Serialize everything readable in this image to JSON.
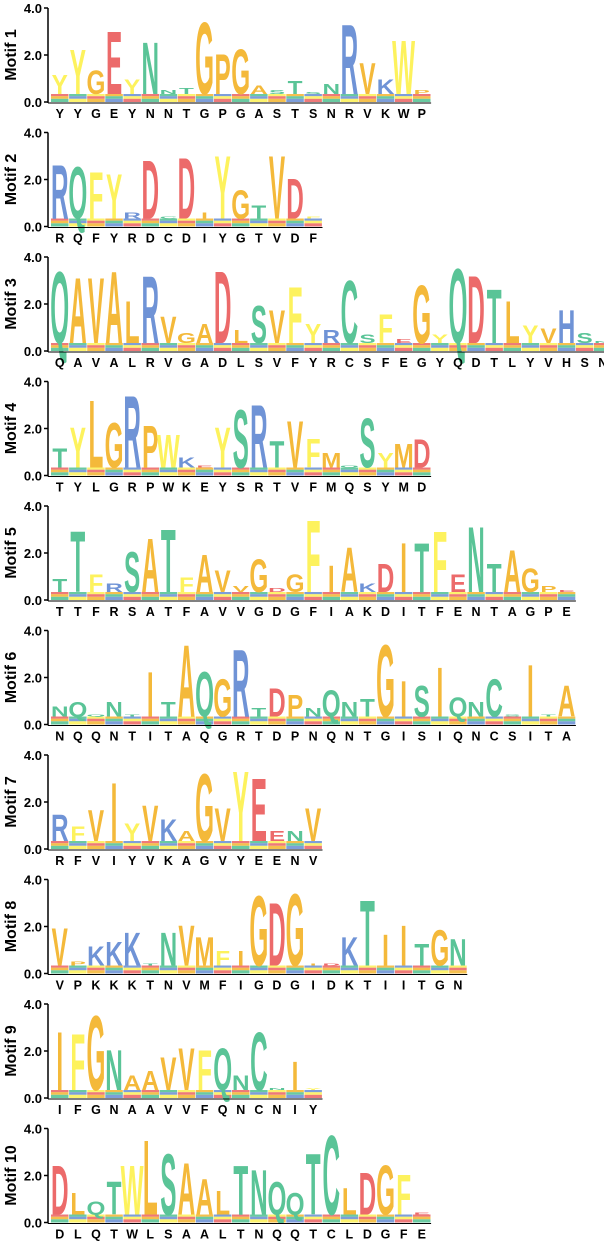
{
  "figure": {
    "y_ticks": [
      "4.0",
      "2.0",
      "0.0"
    ],
    "colors": {
      "green": "#5ac497",
      "yellow": "#fdf25d",
      "orange": "#f4b93a",
      "blue": "#6f93d6",
      "red": "#ec6a6a"
    },
    "letter_colors": {
      "A": "#f4b93a",
      "C": "#5ac497",
      "D": "#ec6a6a",
      "E": "#ec6a6a",
      "F": "#fdf25d",
      "G": "#f4b93a",
      "H": "#6f93d6",
      "I": "#f4b93a",
      "K": "#6f93d6",
      "L": "#f4b93a",
      "M": "#f4b93a",
      "N": "#5ac497",
      "P": "#f4b93a",
      "Q": "#5ac497",
      "R": "#6f93d6",
      "S": "#5ac497",
      "T": "#5ac497",
      "V": "#f4b93a",
      "W": "#fdf25d",
      "Y": "#fdf25d"
    }
  },
  "chart_data": [
    {
      "type": "sequence-logo",
      "label": "Motif 1",
      "ylim": [
        0,
        4
      ],
      "consensus": [
        "Y",
        "Y",
        "G",
        "E",
        "Y",
        "N",
        "N",
        "T",
        "G",
        "P",
        "G",
        "A",
        "S",
        "T",
        "S",
        "N",
        "R",
        "V",
        "K",
        "W",
        "P"
      ],
      "heights": [
        1.2,
        2.3,
        1.4,
        3.1,
        1.0,
        2.6,
        0.5,
        0.6,
        3.5,
        2.1,
        2.3,
        0.7,
        0.5,
        0.9,
        0.4,
        0.8,
        3.4,
        1.7,
        1.0,
        2.7,
        0.5
      ]
    },
    {
      "type": "sequence-logo",
      "label": "Motif 2",
      "ylim": [
        0,
        4
      ],
      "consensus": [
        "R",
        "Q",
        "F",
        "Y",
        "R",
        "D",
        "C",
        "D",
        "I",
        "Y",
        "G",
        "T",
        "V",
        "D",
        "F"
      ],
      "heights": [
        2.7,
        2.6,
        2.4,
        2.3,
        0.6,
        2.9,
        0.3,
        3.0,
        0.6,
        3.1,
        1.6,
        0.9,
        3.1,
        2.1,
        0.3
      ]
    },
    {
      "type": "sequence-logo",
      "label": "Motif 3",
      "ylim": [
        0,
        4
      ],
      "consensus": [
        "Q",
        "A",
        "V",
        "A",
        "L",
        "R",
        "V",
        "G",
        "A",
        "D",
        "L",
        "S",
        "V",
        "F",
        "Y",
        "R",
        "C",
        "S",
        "F",
        "E",
        "G",
        "Y",
        "Q",
        "D",
        "T",
        "L",
        "Y",
        "V",
        "H",
        "S",
        "N"
      ],
      "heights": [
        3.5,
        3.2,
        3.2,
        3.5,
        2.2,
        3.3,
        1.5,
        0.8,
        1.2,
        3.5,
        0.9,
        2.0,
        1.8,
        2.8,
        1.2,
        0.9,
        3.1,
        0.7,
        1.6,
        0.5,
        2.9,
        0.7,
        3.6,
        3.3,
        2.7,
        2.2,
        1.1,
        1.0,
        1.8,
        0.8,
        0.4
      ]
    },
    {
      "type": "sequence-logo",
      "label": "Motif 4",
      "ylim": [
        0,
        4
      ],
      "consensus": [
        "T",
        "Y",
        "L",
        "G",
        "R",
        "P",
        "W",
        "K",
        "E",
        "Y",
        "S",
        "R",
        "T",
        "V",
        "F",
        "M",
        "Q",
        "S",
        "Y",
        "M",
        "D"
      ],
      "heights": [
        1.2,
        2.1,
        3.3,
        2.3,
        3.5,
        2.2,
        1.8,
        0.8,
        0.2,
        2.1,
        2.9,
        3.1,
        1.5,
        2.4,
        1.6,
        1.0,
        0.2,
        2.5,
        1.0,
        1.4,
        1.6
      ]
    },
    {
      "type": "sequence-logo",
      "label": "Motif 5",
      "ylim": [
        0,
        4
      ],
      "consensus": [
        "T",
        "T",
        "F",
        "R",
        "S",
        "A",
        "T",
        "F",
        "A",
        "V",
        "V",
        "G",
        "D",
        "G",
        "F",
        "I",
        "A",
        "K",
        "D",
        "I",
        "T",
        "F",
        "E",
        "N",
        "T",
        "A",
        "G",
        "P",
        "E"
      ],
      "heights": [
        0.9,
        3.0,
        1.1,
        0.7,
        2.1,
        2.7,
        3.1,
        1.0,
        2.0,
        1.3,
        0.6,
        1.8,
        0.5,
        1.1,
        3.5,
        1.5,
        2.3,
        0.7,
        1.6,
        2.5,
        2.5,
        3.0,
        1.1,
        3.2,
        1.6,
        2.2,
        1.4,
        0.6,
        0.2
      ]
    },
    {
      "type": "sequence-logo",
      "label": "Motif 6",
      "ylim": [
        0,
        4
      ],
      "consensus": [
        "N",
        "Q",
        "Q",
        "N",
        "T",
        "I",
        "T",
        "A",
        "Q",
        "G",
        "R",
        "T",
        "D",
        "P",
        "N",
        "Q",
        "N",
        "T",
        "G",
        "I",
        "S",
        "I",
        "Q",
        "N",
        "C",
        "S",
        "I",
        "T",
        "A"
      ],
      "heights": [
        0.8,
        1.0,
        0.2,
        1.0,
        0.4,
        2.3,
        1.0,
        3.5,
        2.3,
        2.0,
        3.3,
        0.7,
        1.6,
        1.3,
        0.7,
        1.5,
        1.0,
        1.1,
        3.5,
        1.9,
        1.7,
        2.5,
        1.2,
        1.0,
        2.0,
        0.2,
        2.6,
        0.3,
        1.7
      ]
    },
    {
      "type": "sequence-logo",
      "label": "Motif 7",
      "ylim": [
        0,
        4
      ],
      "consensus": [
        "R",
        "F",
        "V",
        "I",
        "Y",
        "V",
        "K",
        "A",
        "G",
        "V",
        "Y",
        "E",
        "E",
        "N",
        "V"
      ],
      "heights": [
        1.5,
        1.0,
        1.7,
        2.9,
        1.1,
        1.9,
        1.3,
        0.8,
        3.3,
        1.8,
        3.4,
        3.1,
        0.8,
        0.8,
        1.8
      ]
    },
    {
      "type": "sequence-logo",
      "label": "Motif 8",
      "ylim": [
        0,
        4
      ],
      "consensus": [
        "V",
        "P",
        "K",
        "K",
        "K",
        "T",
        "N",
        "V",
        "M",
        "F",
        "I",
        "G",
        "D",
        "G",
        "I",
        "D",
        "K",
        "T",
        "I",
        "I",
        "T",
        "G",
        "N"
      ],
      "heights": [
        2.0,
        0.5,
        1.2,
        1.4,
        1.8,
        0.4,
        1.8,
        2.1,
        1.6,
        1.0,
        1.0,
        3.4,
        3.1,
        3.5,
        0.3,
        0.2,
        1.6,
        3.2,
        1.7,
        2.1,
        1.3,
        1.9,
        1.5
      ]
    },
    {
      "type": "sequence-logo",
      "label": "Motif 9",
      "ylim": [
        0,
        4
      ],
      "consensus": [
        "I",
        "F",
        "G",
        "N",
        "A",
        "A",
        "V",
        "V",
        "F",
        "Q",
        "N",
        "C",
        "N",
        "I",
        "Y"
      ],
      "heights": [
        2.9,
        2.8,
        3.6,
        2.1,
        1.0,
        1.2,
        1.8,
        2.2,
        2.1,
        2.2,
        1.0,
        2.9,
        0.3,
        1.6,
        0.2
      ]
    },
    {
      "type": "sequence-logo",
      "label": "Motif 10",
      "ylim": [
        0,
        4
      ],
      "consensus": [
        "D",
        "L",
        "Q",
        "T",
        "W",
        "L",
        "S",
        "A",
        "A",
        "L",
        "T",
        "N",
        "Q",
        "Q",
        "T",
        "C",
        "L",
        "D",
        "G",
        "F",
        "E"
      ],
      "heights": [
        2.5,
        1.3,
        0.9,
        1.8,
        2.5,
        3.6,
        3.0,
        2.6,
        1.9,
        1.4,
        2.5,
        2.3,
        1.8,
        1.3,
        3.0,
        3.8,
        1.5,
        2.2,
        2.5,
        2.1,
        0.2
      ]
    }
  ]
}
